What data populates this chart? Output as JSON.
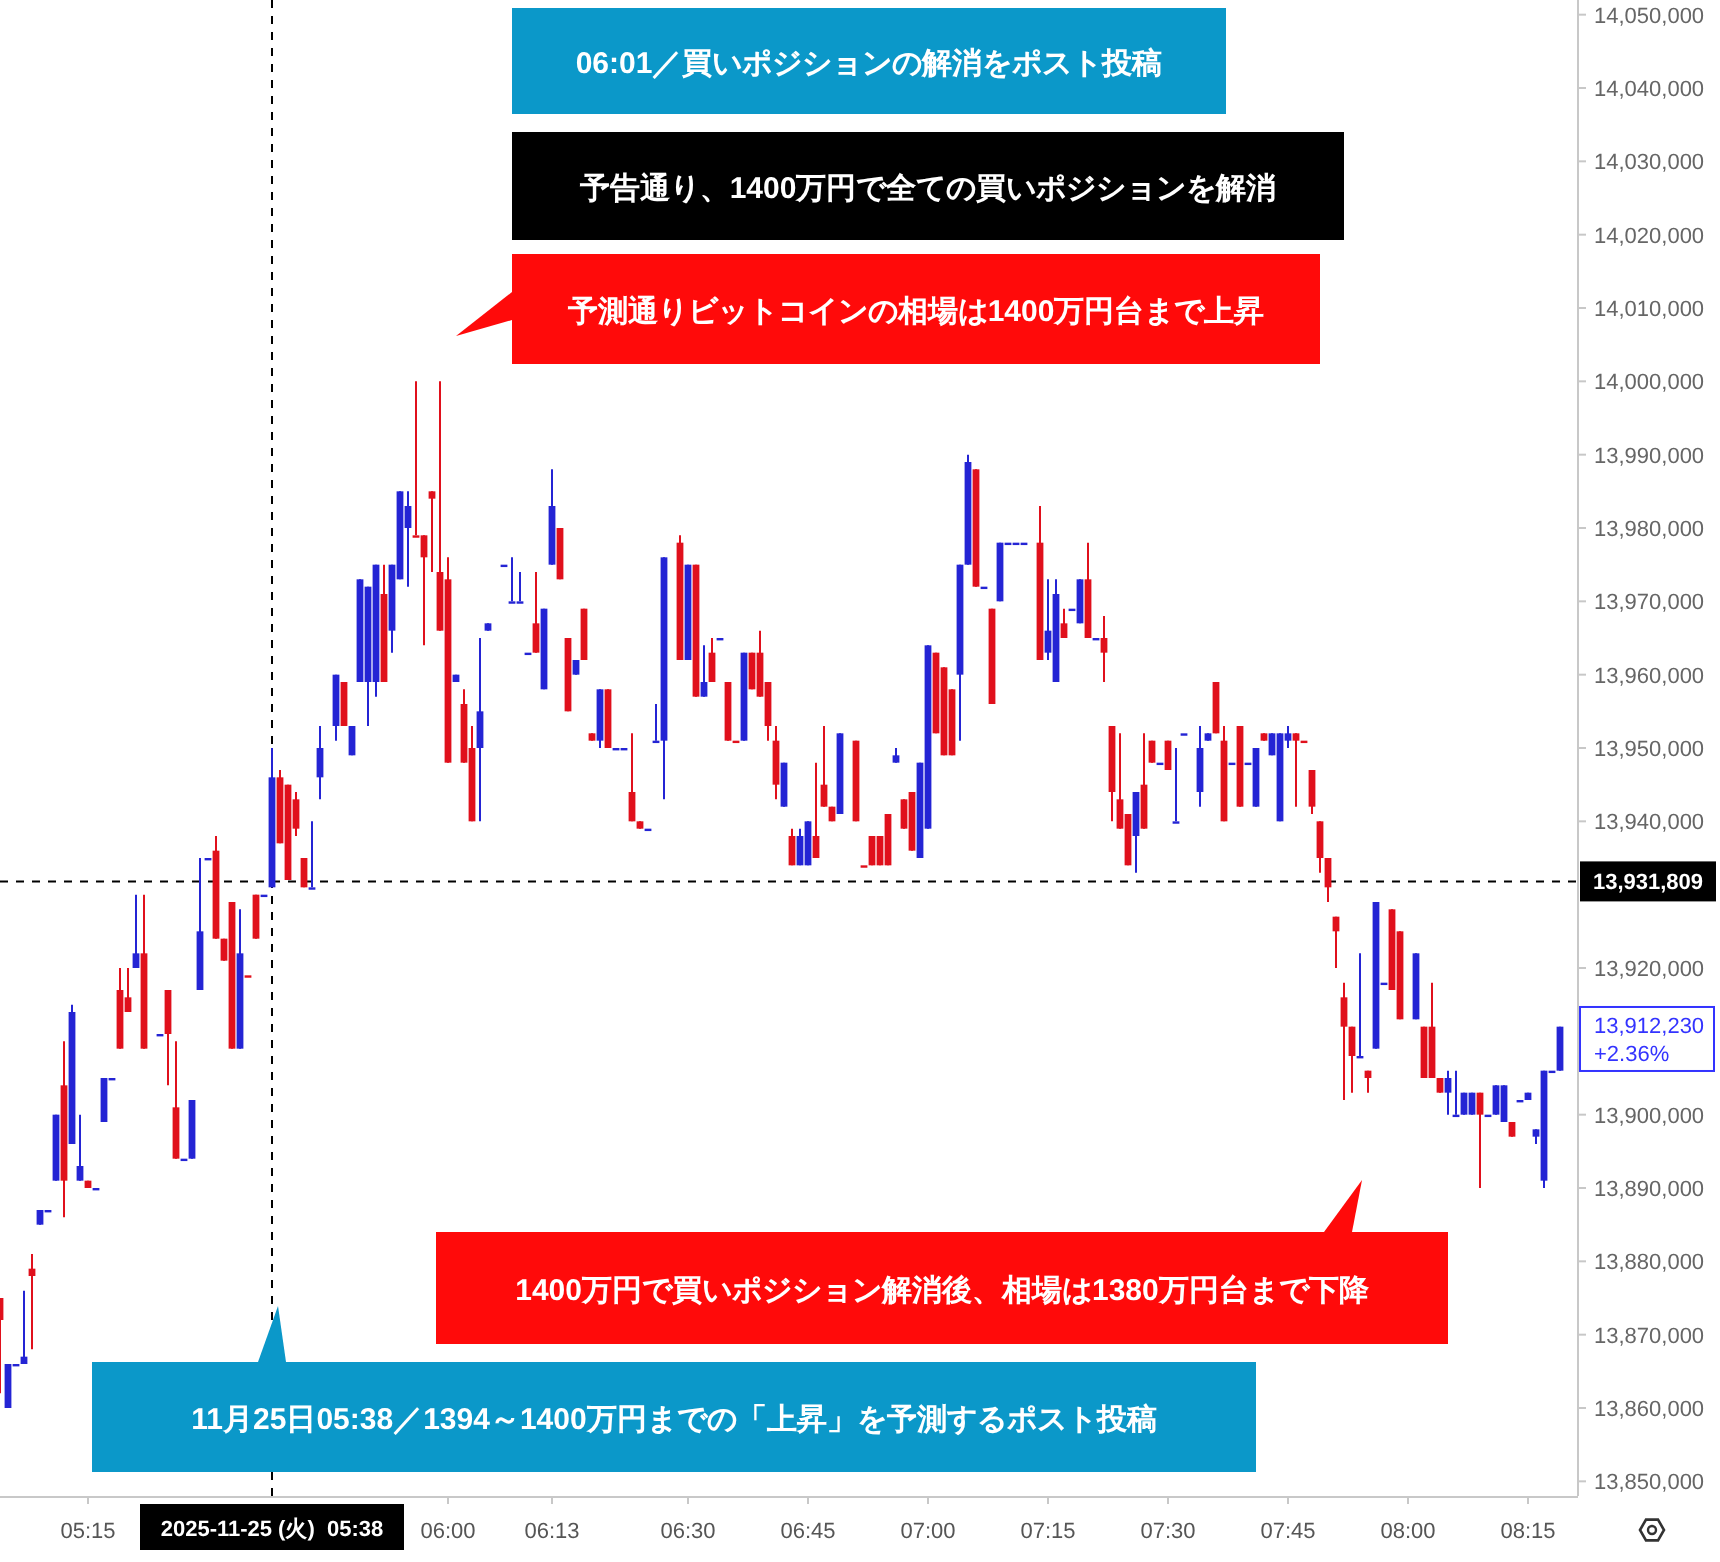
{
  "chart_data": {
    "type": "candlestick",
    "x": [
      "2025-11-25T05:04",
      "2025-11-25T05:05",
      "2025-11-25T05:06",
      "2025-11-25T05:07",
      "2025-11-25T05:08",
      "2025-11-25T05:09",
      "2025-11-25T05:10",
      "2025-11-25T05:11",
      "2025-11-25T05:12",
      "2025-11-25T05:13",
      "2025-11-25T05:14",
      "2025-11-25T05:15",
      "2025-11-25T05:16",
      "2025-11-25T05:17",
      "2025-11-25T05:18",
      "2025-11-25T05:19",
      "2025-11-25T05:20",
      "2025-11-25T05:21",
      "2025-11-25T05:22",
      "2025-11-25T05:24",
      "2025-11-25T05:25",
      "2025-11-25T05:26",
      "2025-11-25T05:27",
      "2025-11-25T05:28",
      "2025-11-25T05:29",
      "2025-11-25T05:30",
      "2025-11-25T05:31",
      "2025-11-25T05:32",
      "2025-11-25T05:33",
      "2025-11-25T05:34",
      "2025-11-25T05:35",
      "2025-11-25T05:36",
      "2025-11-25T05:37",
      "2025-11-25T05:38",
      "2025-11-25T05:39",
      "2025-11-25T05:40",
      "2025-11-25T05:41",
      "2025-11-25T05:42",
      "2025-11-25T05:43",
      "2025-11-25T05:44",
      "2025-11-25T05:46",
      "2025-11-25T05:47",
      "2025-11-25T05:48",
      "2025-11-25T05:49",
      "2025-11-25T05:50",
      "2025-11-25T05:51",
      "2025-11-25T05:52",
      "2025-11-25T05:53",
      "2025-11-25T05:54",
      "2025-11-25T05:55",
      "2025-11-25T05:56",
      "2025-11-25T05:57",
      "2025-11-25T05:58",
      "2025-11-25T05:59",
      "2025-11-25T06:00",
      "2025-11-25T06:01",
      "2025-11-25T06:02",
      "2025-11-25T06:03",
      "2025-11-25T06:04",
      "2025-11-25T06:05",
      "2025-11-25T06:07",
      "2025-11-25T06:08",
      "2025-11-25T06:09",
      "2025-11-25T06:10",
      "2025-11-25T06:11",
      "2025-11-25T06:12",
      "2025-11-25T06:13",
      "2025-11-25T06:14",
      "2025-11-25T06:15",
      "2025-11-25T06:16",
      "2025-11-25T06:17",
      "2025-11-25T06:18",
      "2025-11-25T06:19",
      "2025-11-25T06:20",
      "2025-11-25T06:21",
      "2025-11-25T06:22",
      "2025-11-25T06:23",
      "2025-11-25T06:24",
      "2025-11-25T06:25",
      "2025-11-25T06:26",
      "2025-11-25T06:27",
      "2025-11-25T06:29",
      "2025-11-25T06:30",
      "2025-11-25T06:31",
      "2025-11-25T06:32",
      "2025-11-25T06:33",
      "2025-11-25T06:34",
      "2025-11-25T06:35",
      "2025-11-25T06:36",
      "2025-11-25T06:37",
      "2025-11-25T06:38",
      "2025-11-25T06:39",
      "2025-11-25T06:40",
      "2025-11-25T06:41",
      "2025-11-25T06:42",
      "2025-11-25T06:43",
      "2025-11-25T06:44",
      "2025-11-25T06:45",
      "2025-11-25T06:46",
      "2025-11-25T06:47",
      "2025-11-25T06:48",
      "2025-11-25T06:49",
      "2025-11-25T06:51",
      "2025-11-25T06:52",
      "2025-11-25T06:53",
      "2025-11-25T06:54",
      "2025-11-25T06:55",
      "2025-11-25T06:56",
      "2025-11-25T06:57",
      "2025-11-25T06:58",
      "2025-11-25T06:59",
      "2025-11-25T07:00",
      "2025-11-25T07:01",
      "2025-11-25T07:02",
      "2025-11-25T07:03",
      "2025-11-25T07:04",
      "2025-11-25T07:05",
      "2025-11-25T07:06",
      "2025-11-25T07:07",
      "2025-11-25T07:08",
      "2025-11-25T07:09",
      "2025-11-25T07:10",
      "2025-11-25T07:11",
      "2025-11-25T07:12",
      "2025-11-25T07:14",
      "2025-11-25T07:15",
      "2025-11-25T07:16",
      "2025-11-25T07:17",
      "2025-11-25T07:18",
      "2025-11-25T07:19",
      "2025-11-25T07:20",
      "2025-11-25T07:21",
      "2025-11-25T07:22",
      "2025-11-25T07:23",
      "2025-11-25T07:24",
      "2025-11-25T07:25",
      "2025-11-25T07:26",
      "2025-11-25T07:27",
      "2025-11-25T07:28",
      "2025-11-25T07:29",
      "2025-11-25T07:30",
      "2025-11-25T07:31",
      "2025-11-25T07:32",
      "2025-11-25T07:34",
      "2025-11-25T07:35",
      "2025-11-25T07:36",
      "2025-11-25T07:37",
      "2025-11-25T07:38",
      "2025-11-25T07:39",
      "2025-11-25T07:40",
      "2025-11-25T07:41",
      "2025-11-25T07:42",
      "2025-11-25T07:43",
      "2025-11-25T07:44",
      "2025-11-25T07:45",
      "2025-11-25T07:46",
      "2025-11-25T07:47",
      "2025-11-25T07:48",
      "2025-11-25T07:49",
      "2025-11-25T07:50",
      "2025-11-25T07:51",
      "2025-11-25T07:52",
      "2025-11-25T07:53",
      "2025-11-25T07:54",
      "2025-11-25T07:55",
      "2025-11-25T07:56",
      "2025-11-25T07:57",
      "2025-11-25T07:58",
      "2025-11-25T07:59",
      "2025-11-25T08:01",
      "2025-11-25T08:02",
      "2025-11-25T08:03",
      "2025-11-25T08:04",
      "2025-11-25T08:05",
      "2025-11-25T08:06",
      "2025-11-25T08:07",
      "2025-11-25T08:08",
      "2025-11-25T08:09",
      "2025-11-25T08:10",
      "2025-11-25T08:11",
      "2025-11-25T08:12",
      "2025-11-25T08:13",
      "2025-11-25T08:14",
      "2025-11-25T08:15",
      "2025-11-25T08:16",
      "2025-11-25T08:17",
      "2025-11-25T08:18",
      "2025-11-25T08:19"
    ],
    "ohlc": [
      [
        13875000,
        13875000,
        13862000,
        13872000
      ],
      [
        13860000,
        13866000,
        13860000,
        13866000
      ],
      [
        13866000,
        13866000,
        13866000,
        13866000
      ],
      [
        13866000,
        13876000,
        13866000,
        13867000
      ],
      [
        13879000,
        13881000,
        13868000,
        13878000
      ],
      [
        13885000,
        13887000,
        13885000,
        13887000
      ],
      [
        13887000,
        13887000,
        13887000,
        13887000
      ],
      [
        13891000,
        13900000,
        13891000,
        13900000
      ],
      [
        13904000,
        13910000,
        13886000,
        13891000
      ],
      [
        13896000,
        13915000,
        13896000,
        13914000
      ],
      [
        13891000,
        13900000,
        13891000,
        13893000
      ],
      [
        13891000,
        13891000,
        13890000,
        13890000
      ],
      [
        13890000,
        13890000,
        13890000,
        13890000
      ],
      [
        13899000,
        13905000,
        13899000,
        13905000
      ],
      [
        13905000,
        13905000,
        13905000,
        13905000
      ],
      [
        13917000,
        13920000,
        13909000,
        13909000
      ],
      [
        13916000,
        13920000,
        13914000,
        13914000
      ],
      [
        13920000,
        13930000,
        13920000,
        13922000
      ],
      [
        13922000,
        13930000,
        13909000,
        13909000
      ],
      [
        13911000,
        13911000,
        13911000,
        13911000
      ],
      [
        13917000,
        13917000,
        13904000,
        13911000
      ],
      [
        13901000,
        13910000,
        13894000,
        13894000
      ],
      [
        13894000,
        13894000,
        13894000,
        13894000
      ],
      [
        13894000,
        13902000,
        13894000,
        13902000
      ],
      [
        13917000,
        13935000,
        13917000,
        13925000
      ],
      [
        13935000,
        13935000,
        13935000,
        13935000
      ],
      [
        13936000,
        13938000,
        13924000,
        13924000
      ],
      [
        13924000,
        13924000,
        13921000,
        13921000
      ],
      [
        13929000,
        13929000,
        13909000,
        13909000
      ],
      [
        13909000,
        13928000,
        13909000,
        13922000
      ],
      [
        13919000,
        13919000,
        13919000,
        13919000
      ],
      [
        13930000,
        13930000,
        13924000,
        13924000
      ],
      [
        13930000,
        13930000,
        13930000,
        13930000
      ],
      [
        13931000,
        13950000,
        13931000,
        13946000
      ],
      [
        13946000,
        13947000,
        13937000,
        13937000
      ],
      [
        13945000,
        13945000,
        13932000,
        13932000
      ],
      [
        13943000,
        13944000,
        13938000,
        13939000
      ],
      [
        13935000,
        13935000,
        13931000,
        13931000
      ],
      [
        13931000,
        13940000,
        13931000,
        13931000
      ],
      [
        13946000,
        13953000,
        13943000,
        13950000
      ],
      [
        13953000,
        13960000,
        13951000,
        13960000
      ],
      [
        13959000,
        13959000,
        13953000,
        13953000
      ],
      [
        13949000,
        13953000,
        13949000,
        13953000
      ],
      [
        13959000,
        13973000,
        13959000,
        13973000
      ],
      [
        13959000,
        13972000,
        13953000,
        13972000
      ],
      [
        13959000,
        13975000,
        13957000,
        13975000
      ],
      [
        13971000,
        13975000,
        13959000,
        13959000
      ],
      [
        13966000,
        13975000,
        13963000,
        13975000
      ],
      [
        13973000,
        13985000,
        13973000,
        13985000
      ],
      [
        13980000,
        13985000,
        13972000,
        13983000
      ],
      [
        13979000,
        14000000,
        13979000,
        13979000
      ],
      [
        13979000,
        13979000,
        13964000,
        13976000
      ],
      [
        13985000,
        13985000,
        13974000,
        13984000
      ],
      [
        13974000,
        14000000,
        13966000,
        13966000
      ],
      [
        13973000,
        13976000,
        13948000,
        13948000
      ],
      [
        13959000,
        13960000,
        13959000,
        13960000
      ],
      [
        13956000,
        13958000,
        13948000,
        13948000
      ],
      [
        13950000,
        13953000,
        13940000,
        13940000
      ],
      [
        13950000,
        13965000,
        13940000,
        13955000
      ],
      [
        13966000,
        13967000,
        13966000,
        13967000
      ],
      [
        13975000,
        13975000,
        13975000,
        13975000
      ],
      [
        13970000,
        13976000,
        13970000,
        13970000
      ],
      [
        13970000,
        13974000,
        13970000,
        13970000
      ],
      [
        13963000,
        13963000,
        13963000,
        13963000
      ],
      [
        13967000,
        13974000,
        13963000,
        13963000
      ],
      [
        13958000,
        13969000,
        13958000,
        13969000
      ],
      [
        13975000,
        13988000,
        13975000,
        13983000
      ],
      [
        13980000,
        13980000,
        13973000,
        13973000
      ],
      [
        13965000,
        13965000,
        13955000,
        13955000
      ],
      [
        13960000,
        13962000,
        13960000,
        13962000
      ],
      [
        13969000,
        13969000,
        13962000,
        13962000
      ],
      [
        13952000,
        13952000,
        13951000,
        13951000
      ],
      [
        13951000,
        13958000,
        13950000,
        13958000
      ],
      [
        13958000,
        13958000,
        13950000,
        13950000
      ],
      [
        13950000,
        13950000,
        13950000,
        13950000
      ],
      [
        13950000,
        13950000,
        13950000,
        13950000
      ],
      [
        13944000,
        13952000,
        13940000,
        13940000
      ],
      [
        13940000,
        13940000,
        13939000,
        13939000
      ],
      [
        13939000,
        13939000,
        13939000,
        13939000
      ],
      [
        13951000,
        13956000,
        13951000,
        13951000
      ],
      [
        13951000,
        13976000,
        13943000,
        13976000
      ],
      [
        13978000,
        13979000,
        13962000,
        13962000
      ],
      [
        13962000,
        13975000,
        13962000,
        13975000
      ],
      [
        13975000,
        13975000,
        13957000,
        13957000
      ],
      [
        13957000,
        13964000,
        13957000,
        13959000
      ],
      [
        13963000,
        13965000,
        13959000,
        13959000
      ],
      [
        13965000,
        13965000,
        13965000,
        13965000
      ],
      [
        13959000,
        13959000,
        13951000,
        13951000
      ],
      [
        13951000,
        13951000,
        13951000,
        13951000
      ],
      [
        13951000,
        13963000,
        13951000,
        13963000
      ],
      [
        13963000,
        13963000,
        13958000,
        13958000
      ],
      [
        13963000,
        13966000,
        13957000,
        13957000
      ],
      [
        13959000,
        13959000,
        13951000,
        13953000
      ],
      [
        13951000,
        13953000,
        13943000,
        13945000
      ],
      [
        13942000,
        13948000,
        13942000,
        13948000
      ],
      [
        13938000,
        13939000,
        13934000,
        13934000
      ],
      [
        13934000,
        13939000,
        13934000,
        13938000
      ],
      [
        13934000,
        13940000,
        13934000,
        13940000
      ],
      [
        13938000,
        13948000,
        13935000,
        13935000
      ],
      [
        13945000,
        13953000,
        13942000,
        13942000
      ],
      [
        13942000,
        13942000,
        13940000,
        13940000
      ],
      [
        13941000,
        13952000,
        13941000,
        13952000
      ],
      [
        13951000,
        13951000,
        13940000,
        13940000
      ],
      [
        13934000,
        13934000,
        13934000,
        13934000
      ],
      [
        13938000,
        13938000,
        13934000,
        13934000
      ],
      [
        13938000,
        13938000,
        13934000,
        13934000
      ],
      [
        13941000,
        13941000,
        13934000,
        13934000
      ],
      [
        13948000,
        13950000,
        13948000,
        13949000
      ],
      [
        13943000,
        13943000,
        13939000,
        13939000
      ],
      [
        13944000,
        13944000,
        13936000,
        13936000
      ],
      [
        13935000,
        13948000,
        13935000,
        13948000
      ],
      [
        13939000,
        13964000,
        13939000,
        13964000
      ],
      [
        13963000,
        13963000,
        13952000,
        13952000
      ],
      [
        13961000,
        13961000,
        13949000,
        13949000
      ],
      [
        13958000,
        13958000,
        13949000,
        13949000
      ],
      [
        13960000,
        13975000,
        13951000,
        13975000
      ],
      [
        13975000,
        13990000,
        13975000,
        13989000
      ],
      [
        13988000,
        13988000,
        13972000,
        13972000
      ],
      [
        13972000,
        13972000,
        13972000,
        13972000
      ],
      [
        13969000,
        13969000,
        13956000,
        13956000
      ],
      [
        13970000,
        13978000,
        13970000,
        13978000
      ],
      [
        13978000,
        13978000,
        13978000,
        13978000
      ],
      [
        13978000,
        13978000,
        13978000,
        13978000
      ],
      [
        13978000,
        13978000,
        13978000,
        13978000
      ],
      [
        13978000,
        13983000,
        13962000,
        13962000
      ],
      [
        13963000,
        13973000,
        13962000,
        13966000
      ],
      [
        13959000,
        13973000,
        13959000,
        13971000
      ],
      [
        13967000,
        13969000,
        13965000,
        13965000
      ],
      [
        13969000,
        13969000,
        13969000,
        13969000
      ],
      [
        13967000,
        13973000,
        13967000,
        13973000
      ],
      [
        13973000,
        13978000,
        13965000,
        13965000
      ],
      [
        13965000,
        13965000,
        13965000,
        13965000
      ],
      [
        13965000,
        13968000,
        13959000,
        13963000
      ],
      [
        13953000,
        13953000,
        13940000,
        13944000
      ],
      [
        13943000,
        13952000,
        13939000,
        13939000
      ],
      [
        13941000,
        13941000,
        13934000,
        13934000
      ],
      [
        13938000,
        13944000,
        13933000,
        13944000
      ],
      [
        13945000,
        13952000,
        13939000,
        13939000
      ],
      [
        13951000,
        13951000,
        13948000,
        13948000
      ],
      [
        13948000,
        13948000,
        13948000,
        13948000
      ],
      [
        13951000,
        13951000,
        13947000,
        13947000
      ],
      [
        13940000,
        13950000,
        13940000,
        13940000
      ],
      [
        13952000,
        13952000,
        13952000,
        13952000
      ],
      [
        13944000,
        13953000,
        13942000,
        13950000
      ],
      [
        13951000,
        13952000,
        13951000,
        13952000
      ],
      [
        13959000,
        13959000,
        13952000,
        13952000
      ],
      [
        13951000,
        13953000,
        13940000,
        13940000
      ],
      [
        13948000,
        13948000,
        13948000,
        13948000
      ],
      [
        13953000,
        13953000,
        13942000,
        13942000
      ],
      [
        13948000,
        13948000,
        13948000,
        13948000
      ],
      [
        13942000,
        13950000,
        13942000,
        13950000
      ],
      [
        13952000,
        13952000,
        13951000,
        13951000
      ],
      [
        13949000,
        13952000,
        13949000,
        13952000
      ],
      [
        13940000,
        13952000,
        13940000,
        13952000
      ],
      [
        13951000,
        13953000,
        13950000,
        13952000
      ],
      [
        13952000,
        13952000,
        13942000,
        13951000
      ],
      [
        13951000,
        13951000,
        13951000,
        13951000
      ],
      [
        13947000,
        13947000,
        13941000,
        13942000
      ],
      [
        13940000,
        13940000,
        13933000,
        13935000
      ],
      [
        13935000,
        13935000,
        13929000,
        13931000
      ],
      [
        13927000,
        13927000,
        13920000,
        13925000
      ],
      [
        13916000,
        13918000,
        13902000,
        13912000
      ],
      [
        13912000,
        13912000,
        13903000,
        13908000
      ],
      [
        13908000,
        13922000,
        13908000,
        13908000
      ],
      [
        13906000,
        13906000,
        13903000,
        13905000
      ],
      [
        13909000,
        13929000,
        13909000,
        13929000
      ],
      [
        13918000,
        13918000,
        13918000,
        13918000
      ],
      [
        13928000,
        13928000,
        13917000,
        13917000
      ],
      [
        13925000,
        13925000,
        13913000,
        13913000
      ],
      [
        13913000,
        13922000,
        13913000,
        13922000
      ],
      [
        13912000,
        13912000,
        13905000,
        13905000
      ],
      [
        13912000,
        13918000,
        13905000,
        13905000
      ],
      [
        13905000,
        13905000,
        13903000,
        13903000
      ],
      [
        13903000,
        13906000,
        13900000,
        13905000
      ],
      [
        13900000,
        13906000,
        13900000,
        13900000
      ],
      [
        13900000,
        13903000,
        13900000,
        13903000
      ],
      [
        13900000,
        13903000,
        13900000,
        13903000
      ],
      [
        13903000,
        13903000,
        13890000,
        13900000
      ],
      [
        13900000,
        13900000,
        13900000,
        13900000
      ],
      [
        13900000,
        13904000,
        13900000,
        13904000
      ],
      [
        13899000,
        13904000,
        13899000,
        13904000
      ],
      [
        13899000,
        13899000,
        13897000,
        13897000
      ],
      [
        13902000,
        13902000,
        13902000,
        13902000
      ],
      [
        13902000,
        13903000,
        13902000,
        13903000
      ],
      [
        13897000,
        13898000,
        13896000,
        13898000
      ],
      [
        13891000,
        13906000,
        13890000,
        13906000
      ],
      [
        13906000,
        13906000,
        13906000,
        13906000
      ],
      [
        13906000,
        13912000,
        13906000,
        13912000
      ]
    ],
    "colors": [
      "#e0101c",
      "#2424d4",
      "#2424d4",
      "#2424d4",
      "#e0101c",
      "#2424d4",
      "#2424d4",
      "#2424d4",
      "#e0101c",
      "#2424d4",
      "#2424d4",
      "#e0101c",
      "#2424d4",
      "#2424d4",
      "#2424d4",
      "#e0101c",
      "#e0101c",
      "#2424d4",
      "#e0101c",
      "#2424d4",
      "#e0101c",
      "#e0101c",
      "#2424d4",
      "#2424d4",
      "#2424d4",
      "#2424d4",
      "#e0101c",
      "#e0101c",
      "#e0101c",
      "#2424d4",
      "#e0101c",
      "#e0101c",
      "#2424d4",
      "#2424d4",
      "#e0101c",
      "#e0101c",
      "#e0101c",
      "#e0101c",
      "#2424d4",
      "#2424d4",
      "#2424d4",
      "#e0101c",
      "#2424d4",
      "#2424d4",
      "#2424d4",
      "#2424d4",
      "#e0101c",
      "#2424d4",
      "#2424d4",
      "#2424d4",
      "#e0101c",
      "#e0101c",
      "#e0101c",
      "#e0101c",
      "#e0101c",
      "#2424d4",
      "#e0101c",
      "#e0101c",
      "#2424d4",
      "#2424d4",
      "#2424d4",
      "#2424d4",
      "#2424d4",
      "#2424d4",
      "#e0101c",
      "#2424d4",
      "#2424d4",
      "#e0101c",
      "#e0101c",
      "#2424d4",
      "#e0101c",
      "#e0101c",
      "#2424d4",
      "#e0101c",
      "#2424d4",
      "#2424d4",
      "#e0101c",
      "#e0101c",
      "#2424d4",
      "#2424d4",
      "#2424d4",
      "#e0101c",
      "#2424d4",
      "#e0101c",
      "#2424d4",
      "#e0101c",
      "#2424d4",
      "#e0101c",
      "#e0101c",
      "#2424d4",
      "#e0101c",
      "#e0101c",
      "#e0101c",
      "#e0101c",
      "#2424d4",
      "#e0101c",
      "#2424d4",
      "#2424d4",
      "#e0101c",
      "#e0101c",
      "#e0101c",
      "#2424d4",
      "#e0101c",
      "#e0101c",
      "#e0101c",
      "#e0101c",
      "#e0101c",
      "#2424d4",
      "#e0101c",
      "#e0101c",
      "#2424d4",
      "#2424d4",
      "#e0101c",
      "#e0101c",
      "#e0101c",
      "#2424d4",
      "#2424d4",
      "#e0101c",
      "#2424d4",
      "#e0101c",
      "#2424d4",
      "#2424d4",
      "#2424d4",
      "#2424d4",
      "#e0101c",
      "#2424d4",
      "#2424d4",
      "#e0101c",
      "#2424d4",
      "#2424d4",
      "#e0101c",
      "#2424d4",
      "#e0101c",
      "#e0101c",
      "#e0101c",
      "#e0101c",
      "#2424d4",
      "#e0101c",
      "#e0101c",
      "#2424d4",
      "#e0101c",
      "#2424d4",
      "#2424d4",
      "#2424d4",
      "#2424d4",
      "#e0101c",
      "#e0101c",
      "#2424d4",
      "#e0101c",
      "#2424d4",
      "#2424d4",
      "#e0101c",
      "#2424d4",
      "#2424d4",
      "#2424d4",
      "#e0101c",
      "#e0101c",
      "#e0101c",
      "#e0101c",
      "#e0101c",
      "#e0101c",
      "#e0101c",
      "#e0101c",
      "#2424d4",
      "#e0101c",
      "#2424d4",
      "#2424d4",
      "#e0101c",
      "#e0101c",
      "#2424d4",
      "#e0101c",
      "#e0101c",
      "#e0101c",
      "#2424d4",
      "#2424d4",
      "#2424d4",
      "#2424d4",
      "#e0101c",
      "#2424d4",
      "#2424d4",
      "#2424d4",
      "#e0101c",
      "#2424d4",
      "#2424d4",
      "#2424d4",
      "#2424d4",
      "#2424d4",
      "#2424d4"
    ],
    "xlim": [
      "2025-11-25T05:04",
      "2025-11-25T08:21"
    ],
    "xticks": [
      {
        "value": "2025-11-25T05:15",
        "label": "05:15"
      },
      {
        "value": "2025-11-25T06:00",
        "label": "06:00"
      },
      {
        "value": "2025-11-25T06:13",
        "label": "06:13"
      },
      {
        "value": "2025-11-25T06:30",
        "label": "06:30"
      },
      {
        "value": "2025-11-25T06:45",
        "label": "06:45"
      },
      {
        "value": "2025-11-25T07:00",
        "label": "07:00"
      },
      {
        "value": "2025-11-25T07:15",
        "label": "07:15"
      },
      {
        "value": "2025-11-25T07:30",
        "label": "07:30"
      },
      {
        "value": "2025-11-25T07:45",
        "label": "07:45"
      },
      {
        "value": "2025-11-25T08:00",
        "label": "08:00"
      },
      {
        "value": "2025-11-25T08:15",
        "label": "08:15"
      }
    ],
    "ylim": [
      13848000,
      14052000
    ],
    "yticks": [
      {
        "value": 13850000,
        "label": "13,850,000"
      },
      {
        "value": 13860000,
        "label": "13,860,000"
      },
      {
        "value": 13870000,
        "label": "13,870,000"
      },
      {
        "value": 13880000,
        "label": "13,880,000"
      },
      {
        "value": 13890000,
        "label": "13,890,000"
      },
      {
        "value": 13900000,
        "label": "13,900,000"
      },
      {
        "value": 13920000,
        "label": "13,920,000"
      },
      {
        "value": 13940000,
        "label": "13,940,000"
      },
      {
        "value": 13950000,
        "label": "13,950,000"
      },
      {
        "value": 13960000,
        "label": "13,960,000"
      },
      {
        "value": 13970000,
        "label": "13,970,000"
      },
      {
        "value": 13980000,
        "label": "13,980,000"
      },
      {
        "value": 13990000,
        "label": "13,990,000"
      },
      {
        "value": 14000000,
        "label": "14,000,000"
      },
      {
        "value": 14010000,
        "label": "14,010,000"
      },
      {
        "value": 14020000,
        "label": "14,020,000"
      },
      {
        "value": 14030000,
        "label": "14,030,000"
      },
      {
        "value": 14040000,
        "label": "14,040,000"
      },
      {
        "value": 14050000,
        "label": "14,050,000"
      }
    ],
    "ref_lines": [
      {
        "axis": "y",
        "value": 13931809,
        "label": "13,931,809",
        "color": "#000000",
        "line_style": "dashed"
      },
      {
        "axis": "x",
        "value": "2025-11-25T05:38",
        "label": "2025-11-25 (火)  05:38",
        "color": "#000000",
        "line_style": "dashed"
      }
    ],
    "annotations": [
      "06:01／買いポジションの解消をポスト投稿",
      "予告通り、1400万円で全ての買いポジションを解消",
      "予測通りビットコインの相場は1400万円台まで上昇",
      "1400万円で買いポジション解消後、相場は1380万円台まで下降",
      "11月25日05:38／1394～1400万円までの「上昇」を予測するポスト投稿",
      {
        "text": "13,912,230\n+2.36%",
        "x": "2025-11-25T08:19",
        "y": 13912230
      }
    ]
  }
}
